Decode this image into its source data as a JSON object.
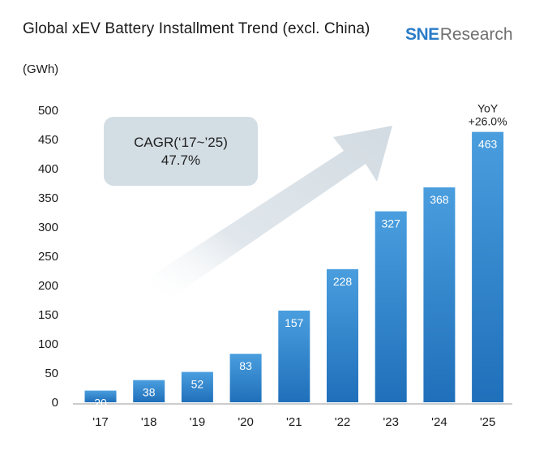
{
  "title": "Global xEV Battery Installment Trend (excl. China)",
  "logo": {
    "brand": "SNE",
    "brand_tail": "Research"
  },
  "unit_label": "(GWh)",
  "annotation": {
    "cagr_label": "CAGR(‘17~’25)",
    "cagr_value": "47.7%",
    "yoy_label": "YoY",
    "yoy_value": "+26.0%"
  },
  "colors": {
    "bar_top": "#4a9ede",
    "bar_bottom": "#1f6fba",
    "arrow": "#dde4ea",
    "logo_blue": "#2a7cc7"
  },
  "chart_data": {
    "type": "bar",
    "title": "Global xEV Battery Installment Trend (excl. China)",
    "xlabel": "",
    "ylabel": "(GWh)",
    "categories": [
      "'17",
      "'18",
      "'19",
      "'20",
      "'21",
      "'22",
      "'23",
      "'24",
      "'25"
    ],
    "values": [
      20,
      38,
      52,
      83,
      157,
      228,
      327,
      368,
      463
    ],
    "ylim": [
      0,
      500
    ],
    "yticks": [
      0,
      50,
      100,
      150,
      200,
      250,
      300,
      350,
      400,
      450,
      500
    ],
    "grid": false
  }
}
